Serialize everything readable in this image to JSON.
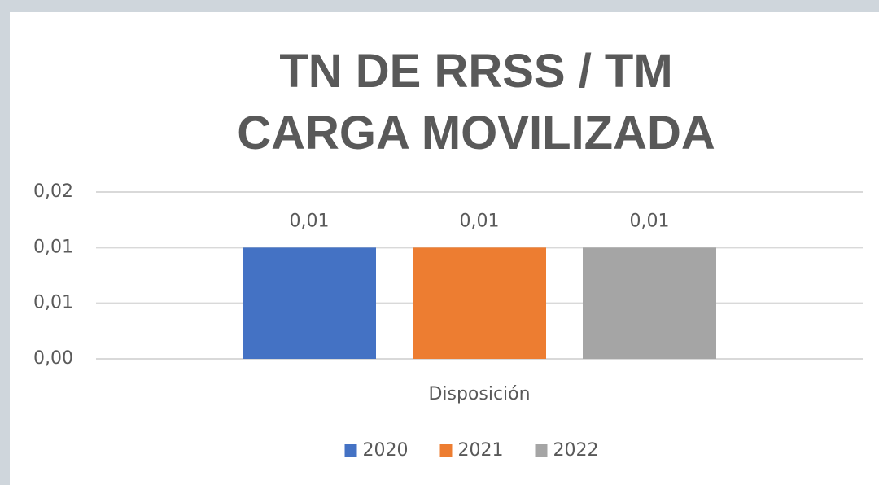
{
  "chart_data": {
    "type": "bar",
    "title": "TN DE RRSS / TM CARGA MOVILIZADA",
    "categories": [
      "Disposición"
    ],
    "series": [
      {
        "name": "2020",
        "color": "#4472c4",
        "values": [
          0.01
        ],
        "value_labels": [
          "0,01"
        ]
      },
      {
        "name": "2021",
        "color": "#ed7d31",
        "values": [
          0.01
        ],
        "value_labels": [
          "0,01"
        ]
      },
      {
        "name": "2022",
        "color": "#a5a5a5",
        "values": [
          0.01
        ],
        "value_labels": [
          "0,01"
        ]
      }
    ],
    "ylim": [
      0,
      0.015
    ],
    "yticks": [
      {
        "value": 0,
        "label": "0,00"
      },
      {
        "value": 0.005,
        "label": "0,01"
      },
      {
        "value": 0.01,
        "label": "0,01"
      },
      {
        "value": 0.015,
        "label": "0,02"
      }
    ],
    "grid": true,
    "legend": "bottom"
  }
}
